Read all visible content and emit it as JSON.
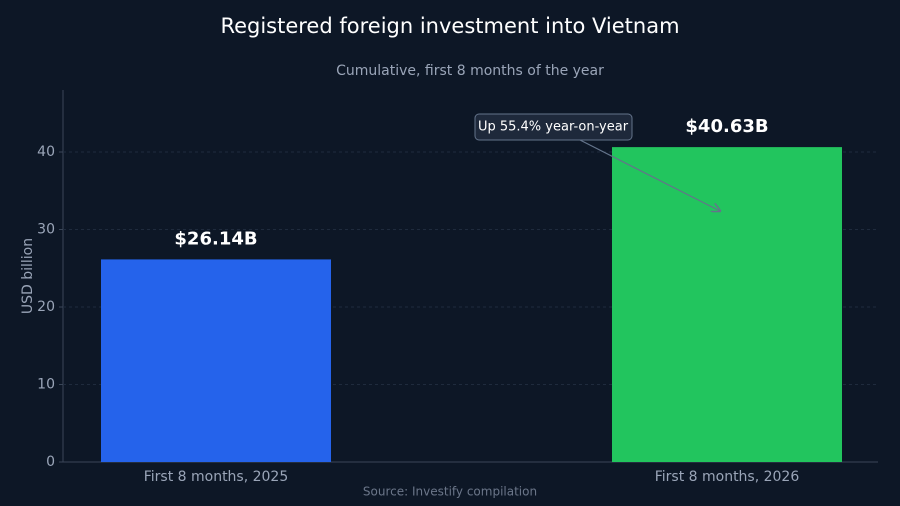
{
  "chart_data": {
    "type": "bar",
    "title": "Registered foreign investment into Vietnam",
    "subtitle": "Cumulative, first 8 months of the year",
    "y_label": "USD billion",
    "source": "Source: Investify compilation",
    "categories": [
      "First 8 months, 2025",
      "First 8 months, 2026"
    ],
    "values": [
      26.14,
      40.63
    ],
    "value_labels": [
      "$26.14B",
      "$40.63B"
    ],
    "colors": [
      "#2563eb",
      "#22c55e"
    ],
    "annotation": "Up 55.4% year-on-year",
    "ylim": [
      0,
      48
    ],
    "yticks": [
      0,
      10,
      20,
      30,
      40
    ],
    "grid": true
  }
}
